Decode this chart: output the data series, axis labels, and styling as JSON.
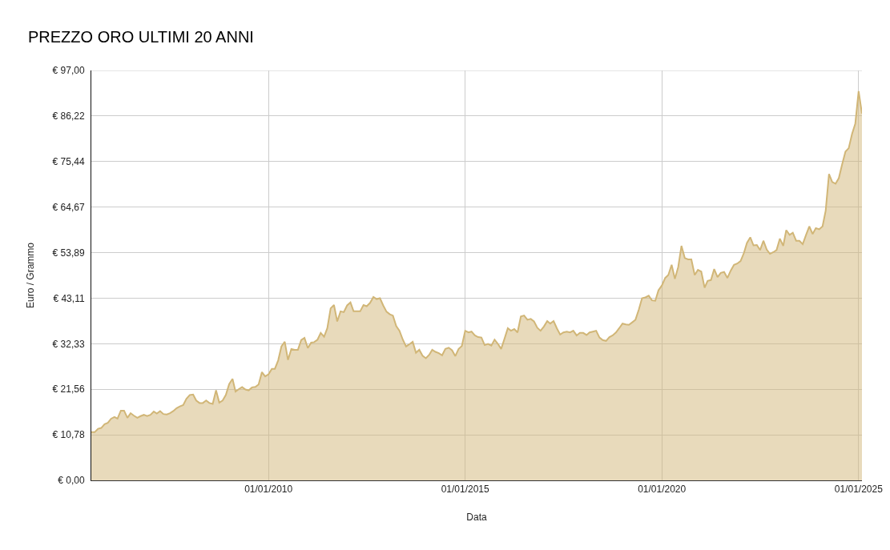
{
  "chart_data": {
    "type": "area",
    "title": "PREZZO ORO ULTIMI 20 ANNI",
    "xlabel": "Data",
    "ylabel": "Euro / Grammo",
    "x": [
      "2005-07",
      "2005-08",
      "2005-09",
      "2005-10",
      "2005-11",
      "2005-12",
      "2006-01",
      "2006-02",
      "2006-03",
      "2006-04",
      "2006-05",
      "2006-06",
      "2006-07",
      "2006-08",
      "2006-09",
      "2006-10",
      "2006-11",
      "2006-12",
      "2007-01",
      "2007-02",
      "2007-03",
      "2007-04",
      "2007-05",
      "2007-06",
      "2007-07",
      "2007-08",
      "2007-09",
      "2007-10",
      "2007-11",
      "2007-12",
      "2008-01",
      "2008-02",
      "2008-03",
      "2008-04",
      "2008-05",
      "2008-06",
      "2008-07",
      "2008-08",
      "2008-09",
      "2008-10",
      "2008-11",
      "2008-12",
      "2009-01",
      "2009-02",
      "2009-03",
      "2009-04",
      "2009-05",
      "2009-06",
      "2009-07",
      "2009-08",
      "2009-09",
      "2009-10",
      "2009-11",
      "2009-12",
      "2010-01",
      "2010-02",
      "2010-03",
      "2010-04",
      "2010-05",
      "2010-06",
      "2010-07",
      "2010-08",
      "2010-09",
      "2010-10",
      "2010-11",
      "2010-12",
      "2011-01",
      "2011-02",
      "2011-03",
      "2011-04",
      "2011-05",
      "2011-06",
      "2011-07",
      "2011-08",
      "2011-09",
      "2011-10",
      "2011-11",
      "2011-12",
      "2012-01",
      "2012-02",
      "2012-03",
      "2012-04",
      "2012-05",
      "2012-06",
      "2012-07",
      "2012-08",
      "2012-09",
      "2012-10",
      "2012-11",
      "2012-12",
      "2013-01",
      "2013-02",
      "2013-03",
      "2013-04",
      "2013-05",
      "2013-06",
      "2013-07",
      "2013-08",
      "2013-09",
      "2013-10",
      "2013-11",
      "2013-12",
      "2014-01",
      "2014-02",
      "2014-03",
      "2014-04",
      "2014-05",
      "2014-06",
      "2014-07",
      "2014-08",
      "2014-09",
      "2014-10",
      "2014-11",
      "2014-12",
      "2015-01",
      "2015-02",
      "2015-03",
      "2015-04",
      "2015-05",
      "2015-06",
      "2015-07",
      "2015-08",
      "2015-09",
      "2015-10",
      "2015-11",
      "2015-12",
      "2016-01",
      "2016-02",
      "2016-03",
      "2016-04",
      "2016-05",
      "2016-06",
      "2016-07",
      "2016-08",
      "2016-09",
      "2016-10",
      "2016-11",
      "2016-12",
      "2017-01",
      "2017-02",
      "2017-03",
      "2017-04",
      "2017-05",
      "2017-06",
      "2017-07",
      "2017-08",
      "2017-09",
      "2017-10",
      "2017-11",
      "2017-12",
      "2018-01",
      "2018-02",
      "2018-03",
      "2018-04",
      "2018-05",
      "2018-06",
      "2018-07",
      "2018-08",
      "2018-09",
      "2018-10",
      "2018-11",
      "2018-12",
      "2019-01",
      "2019-02",
      "2019-03",
      "2019-04",
      "2019-05",
      "2019-06",
      "2019-07",
      "2019-08",
      "2019-09",
      "2019-10",
      "2019-11",
      "2019-12",
      "2020-01",
      "2020-02",
      "2020-03",
      "2020-04",
      "2020-05",
      "2020-06",
      "2020-07",
      "2020-08",
      "2020-09",
      "2020-10",
      "2020-11",
      "2020-12",
      "2021-01",
      "2021-02",
      "2021-03",
      "2021-04",
      "2021-05",
      "2021-06",
      "2021-07",
      "2021-08",
      "2021-09",
      "2021-10",
      "2021-11",
      "2021-12",
      "2022-01",
      "2022-02",
      "2022-03",
      "2022-04",
      "2022-05",
      "2022-06",
      "2022-07",
      "2022-08",
      "2022-09",
      "2022-10",
      "2022-11",
      "2022-12",
      "2023-01",
      "2023-02",
      "2023-03",
      "2023-04",
      "2023-05",
      "2023-06",
      "2023-07",
      "2023-08",
      "2023-09",
      "2023-10",
      "2023-11",
      "2023-12",
      "2024-01",
      "2024-02",
      "2024-03",
      "2024-04",
      "2024-05",
      "2024-06",
      "2024-07",
      "2024-08",
      "2024-09",
      "2024-10",
      "2024-11",
      "2024-12",
      "2025-01",
      "2025-02"
    ],
    "series": [
      {
        "color": "#d1b677",
        "values": [
          11.4,
          11.4,
          12.2,
          12.4,
          13.3,
          13.6,
          14.6,
          15.0,
          14.6,
          16.5,
          16.5,
          14.8,
          15.9,
          15.3,
          14.8,
          15.2,
          15.5,
          15.2,
          15.5,
          16.3,
          15.8,
          16.4,
          15.7,
          15.6,
          15.9,
          16.4,
          17.1,
          17.5,
          17.8,
          19.3,
          20.2,
          20.3,
          18.9,
          18.3,
          18.3,
          18.9,
          18.3,
          18.1,
          21.3,
          18.4,
          18.9,
          20.2,
          22.8,
          24.0,
          21.0,
          21.6,
          22.1,
          21.5,
          21.3,
          22.0,
          22.1,
          22.7,
          25.6,
          24.6,
          25.1,
          26.4,
          26.4,
          28.4,
          31.7,
          32.8,
          28.5,
          31.1,
          30.9,
          30.9,
          33.2,
          33.7,
          31.3,
          32.6,
          32.7,
          33.3,
          34.9,
          34.0,
          36.0,
          40.7,
          41.5,
          37.6,
          40.0,
          39.8,
          41.4,
          42.1,
          40.0,
          40.0,
          40.0,
          41.5,
          41.2,
          42.0,
          43.4,
          42.9,
          43.1,
          41.4,
          39.9,
          39.3,
          39.0,
          36.5,
          35.4,
          33.3,
          31.7,
          32.2,
          32.8,
          30.2,
          30.9,
          29.5,
          28.9,
          29.7,
          30.9,
          30.4,
          30.1,
          29.6,
          31.1,
          31.4,
          30.8,
          29.4,
          31.1,
          31.8,
          35.4,
          35.0,
          35.2,
          34.3,
          33.9,
          33.8,
          32.0,
          32.3,
          31.9,
          33.3,
          32.3,
          31.1,
          33.5,
          36.0,
          35.4,
          35.8,
          35.0,
          38.8,
          39.0,
          38.0,
          38.2,
          37.6,
          36.1,
          35.4,
          36.4,
          37.7,
          37.1,
          37.7,
          36.0,
          34.5,
          35.0,
          35.2,
          35.0,
          35.4,
          34.3,
          34.9,
          34.9,
          34.4,
          35.0,
          35.2,
          35.4,
          33.8,
          33.2,
          33.0,
          33.9,
          34.3,
          35.0,
          36.0,
          37.1,
          36.9,
          36.8,
          37.4,
          38.0,
          40.4,
          43.1,
          43.3,
          43.7,
          42.6,
          42.5,
          45.0,
          46.1,
          47.9,
          48.6,
          51.0,
          47.7,
          50.5,
          55.5,
          52.6,
          52.3,
          52.3,
          48.6,
          49.8,
          49.4,
          45.6,
          47.2,
          47.4,
          50.0,
          48.1,
          49.1,
          49.3,
          47.9,
          49.6,
          51.0,
          51.3,
          51.9,
          53.8,
          56.2,
          57.5,
          55.6,
          55.7,
          54.5,
          56.7,
          54.6,
          53.6,
          54.0,
          54.5,
          57.2,
          55.5,
          59.2,
          58.1,
          58.6,
          56.7,
          56.7,
          55.9,
          58.1,
          60.1,
          58.3,
          59.7,
          59.4,
          60.1,
          63.8,
          72.5,
          70.6,
          70.2,
          71.5,
          74.8,
          77.8,
          78.6,
          82.0,
          84.4,
          92.1,
          86.8
        ]
      }
    ],
    "xlim": [
      "2005-07",
      "2025-02"
    ],
    "xticks": [
      {
        "value": "2010-01-01",
        "label": "01/01/2010"
      },
      {
        "value": "2015-01-01",
        "label": "01/01/2015"
      },
      {
        "value": "2020-01-01",
        "label": "01/01/2020"
      },
      {
        "value": "2025-01-01",
        "label": "01/01/2025"
      }
    ],
    "ylim": [
      0,
      97
    ],
    "yticks": [
      {
        "value": 0,
        "label": "€ 0,00"
      },
      {
        "value": 10.78,
        "label": "€ 10,78"
      },
      {
        "value": 21.56,
        "label": "€ 21,56"
      },
      {
        "value": 32.33,
        "label": "€ 32,33"
      },
      {
        "value": 43.11,
        "label": "€ 43,11"
      },
      {
        "value": 53.89,
        "label": "€ 53,89"
      },
      {
        "value": 64.67,
        "label": "€ 64,67"
      },
      {
        "value": 75.44,
        "label": "€ 75,44"
      },
      {
        "value": 86.22,
        "label": "€ 86,22"
      },
      {
        "value": 97,
        "label": "€ 97,00"
      }
    ],
    "grid": true
  }
}
